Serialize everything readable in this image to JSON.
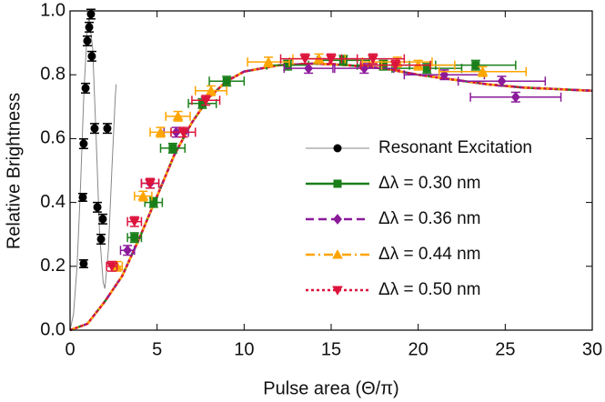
{
  "chart_data": {
    "type": "scatter",
    "xlabel": "Pulse area (Θ/π)",
    "ylabel": "Relative Brightness",
    "xlim": [
      0,
      30
    ],
    "xticks": [
      0,
      5,
      10,
      15,
      20,
      25,
      30
    ],
    "ylim": [
      0,
      1
    ],
    "yticks": [
      {
        "value": 0,
        "label": "0.0"
      },
      0.2,
      0.4,
      0.6,
      0.8,
      {
        "value": 1,
        "label": "1.0"
      }
    ],
    "series": [
      {
        "name": "Resonant Excitation",
        "color": "#000000",
        "marker": "circle",
        "line_color": "#888888",
        "dash": "solid",
        "x": [
          0.78,
          0.73,
          0.78,
          0.89,
          0.99,
          1.1,
          1.2,
          1.25,
          1.41,
          1.57,
          1.88,
          1.78,
          2.14
        ],
        "values": [
          0.208,
          0.416,
          0.584,
          0.758,
          0.906,
          0.949,
          0.99,
          0.858,
          0.632,
          0.385,
          0.348,
          0.285,
          0.632
        ],
        "yerr": [
          0.012,
          0.012,
          0.015,
          0.015,
          0.015,
          0.015,
          0.015,
          0.015,
          0.015,
          0.015,
          0.015,
          0.015,
          0.015
        ],
        "xerr": [
          0.05,
          0.05,
          0.05,
          0.05,
          0.05,
          0.05,
          0.05,
          0.05,
          0.05,
          0.05,
          0.05,
          0.05,
          0.05
        ],
        "curve": {
          "x": [
            0,
            0.2,
            0.4,
            0.6,
            0.8,
            1.0,
            1.1,
            1.3,
            1.5,
            1.7,
            1.9,
            2.0,
            2.2,
            2.4,
            2.6,
            2.65
          ],
          "y": [
            0,
            0.05,
            0.2,
            0.45,
            0.75,
            0.95,
            0.98,
            0.88,
            0.6,
            0.3,
            0.15,
            0.13,
            0.25,
            0.5,
            0.73,
            0.77
          ]
        }
      },
      {
        "name": "Δλ = 0.30 nm",
        "color": "#1a7f1a",
        "marker": "square",
        "dash": "solid",
        "x": [
          3.7,
          4.8,
          5.9,
          7.6,
          9.0,
          12.5,
          15.7,
          18.0,
          20.5,
          23.3
        ],
        "values": [
          0.29,
          0.4,
          0.57,
          0.71,
          0.78,
          0.83,
          0.845,
          0.83,
          0.82,
          0.83
        ],
        "yerr": [
          0.015,
          0.015,
          0.015,
          0.015,
          0.015,
          0.015,
          0.015,
          0.015,
          0.015,
          0.015
        ],
        "xerr": [
          0.4,
          0.5,
          0.7,
          0.8,
          1.0,
          1.2,
          1.5,
          1.5,
          2.0,
          2.3
        ],
        "curve": {
          "x": [
            0,
            1,
            2,
            3,
            4,
            5,
            6,
            7,
            8,
            9,
            10,
            12,
            14,
            16,
            18,
            20,
            22,
            24,
            26,
            28,
            30
          ],
          "y": [
            0,
            0.02,
            0.09,
            0.17,
            0.29,
            0.42,
            0.55,
            0.65,
            0.73,
            0.78,
            0.81,
            0.83,
            0.835,
            0.83,
            0.82,
            0.8,
            0.785,
            0.77,
            0.76,
            0.755,
            0.75
          ]
        }
      },
      {
        "name": "Δλ = 0.36 nm",
        "color": "#8b1a9b",
        "marker": "diamond",
        "dash": "9,5",
        "x": [
          3.3,
          4.6,
          6.1,
          13.7,
          16.9,
          21.5,
          24.8,
          25.6
        ],
        "values": [
          0.25,
          0.46,
          0.62,
          0.82,
          0.82,
          0.8,
          0.78,
          0.73
        ],
        "yerr": [
          0.015,
          0.015,
          0.015,
          0.015,
          0.015,
          0.015,
          0.015,
          0.015
        ],
        "xerr": [
          0.4,
          0.5,
          0.7,
          1.4,
          1.7,
          2.3,
          2.5,
          2.6
        ],
        "curve": {
          "x": [
            0,
            1,
            2,
            3,
            4,
            5,
            6,
            7,
            8,
            9,
            10,
            12,
            14,
            16,
            18,
            20,
            22,
            24,
            26,
            28,
            30
          ],
          "y": [
            0,
            0.02,
            0.09,
            0.17,
            0.29,
            0.42,
            0.55,
            0.65,
            0.73,
            0.78,
            0.81,
            0.83,
            0.835,
            0.83,
            0.82,
            0.8,
            0.785,
            0.77,
            0.76,
            0.755,
            0.75
          ]
        }
      },
      {
        "name": "Δλ = 0.44 nm",
        "color": "#ffa500",
        "marker": "triangle",
        "dash": "10,4,2,4",
        "x": [
          2.7,
          4.2,
          5.2,
          6.2,
          8.1,
          11.4,
          14.3,
          18.8,
          20.0,
          23.7
        ],
        "values": [
          0.2,
          0.42,
          0.62,
          0.67,
          0.75,
          0.84,
          0.85,
          0.84,
          0.83,
          0.81
        ],
        "yerr": [
          0.015,
          0.015,
          0.015,
          0.015,
          0.015,
          0.015,
          0.015,
          0.015,
          0.015,
          0.015
        ],
        "xerr": [
          0.3,
          0.5,
          0.6,
          0.7,
          0.9,
          1.2,
          1.5,
          2.0,
          2.1,
          2.5
        ],
        "curve": {
          "x": [
            0,
            1,
            2,
            3,
            4,
            5,
            6,
            7,
            8,
            9,
            10,
            12,
            14,
            16,
            18,
            20,
            22,
            24,
            26,
            28,
            30
          ],
          "y": [
            0,
            0.02,
            0.09,
            0.17,
            0.29,
            0.42,
            0.55,
            0.65,
            0.73,
            0.78,
            0.81,
            0.83,
            0.835,
            0.83,
            0.82,
            0.8,
            0.785,
            0.77,
            0.76,
            0.755,
            0.75
          ]
        }
      },
      {
        "name": "Δλ = 0.50 nm",
        "color": "#dc143c",
        "marker": "triangle-down",
        "dash": "3,3",
        "x": [
          2.4,
          3.7,
          4.6,
          6.5,
          7.8,
          13.5,
          15.0,
          17.4,
          18.7
        ],
        "values": [
          0.2,
          0.34,
          0.46,
          0.62,
          0.72,
          0.85,
          0.85,
          0.85,
          0.83
        ],
        "yerr": [
          0.015,
          0.015,
          0.015,
          0.015,
          0.015,
          0.015,
          0.015,
          0.015,
          0.015
        ],
        "xerr": [
          0.3,
          0.4,
          0.5,
          0.7,
          0.8,
          1.4,
          1.5,
          1.8,
          2.0
        ],
        "curve": {
          "x": [
            0,
            1,
            2,
            3,
            4,
            5,
            6,
            7,
            8,
            9,
            10,
            12,
            14,
            16,
            18,
            20,
            22,
            24,
            26,
            28,
            30
          ],
          "y": [
            0,
            0.02,
            0.09,
            0.17,
            0.29,
            0.42,
            0.55,
            0.65,
            0.73,
            0.78,
            0.81,
            0.83,
            0.835,
            0.83,
            0.82,
            0.8,
            0.785,
            0.77,
            0.76,
            0.755,
            0.75
          ]
        }
      }
    ]
  }
}
